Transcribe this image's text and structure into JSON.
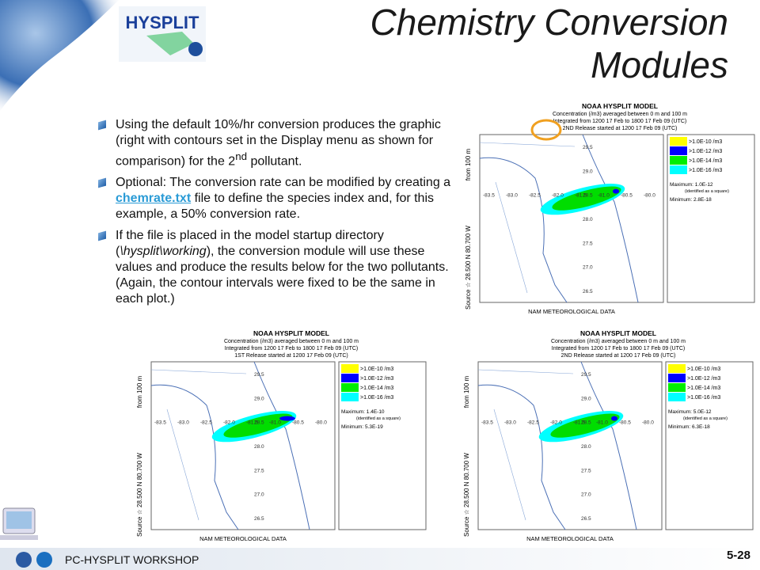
{
  "slide": {
    "title_line1": "Chemistry Conversion",
    "title_line2": "Modules",
    "logo_text": "HYSPLIT",
    "bullets": [
      {
        "parts": [
          "Using the default 10%/hr conversion produces the graphic (right with contours set in the Display menu as shown for comparison) for the 2",
          "nd",
          " pollutant."
        ]
      },
      {
        "parts": [
          "Optional: The conversion rate can be modified by creating a ",
          "chemrate.txt",
          " file to define the species index and, for this example, a 50% conversion rate."
        ]
      },
      {
        "parts": [
          "If the file is placed in the model startup directory (",
          "\\hysplit\\working",
          "), the conversion module will use these values and produce the results below for the two pollutants. (Again, the contour intervals were fixed to be the same in each plot.)"
        ]
      }
    ],
    "footer": "PC-HYSPLIT WORKSHOP",
    "page_number": "5-28"
  },
  "plots": [
    {
      "header": [
        "NOAA HYSPLIT MODEL",
        "Concentration (/m3) averaged between    0 m and   100 m",
        "Integrated from 1200 17 Feb to 1800 17 Feb 09 (UTC)",
        "2ND  Release started at 1200 17 Feb 09 (UTC)"
      ],
      "legend": [
        {
          "label": ">1.0E-10 /m3",
          "color": "#ffff00"
        },
        {
          "label": ">1.0E-12 /m3",
          "color": "#0000ff"
        },
        {
          "label": ">1.0E-14 /m3",
          "color": "#00ee00"
        },
        {
          "label": ">1.0E-16 /m3",
          "color": "#00ffff"
        }
      ],
      "maximum": "Maximum: 1.0E-12",
      "max_note": "(identified as a square)",
      "minimum": "Minimum: 2.8E-18",
      "source": "Source ☆ 28.500 N 80.700 W",
      "height": "from  100 m",
      "met": "NAM METEOROLOGICAL DATA",
      "lat_labels": [
        "29.5",
        "29.0",
        "28.5",
        "28.0",
        "27.5",
        "27.0",
        "26.5"
      ],
      "lon_labels": [
        "-83.5",
        "-83.0",
        "-82.5",
        "-82.0",
        "-81.5",
        "-81.0",
        "-80.5",
        "-80.0"
      ]
    },
    {
      "header": [
        "NOAA HYSPLIT MODEL",
        "Concentration (/m3) averaged between    0 m and   100 m",
        "Integrated from 1200 17 Feb to 1800 17 Feb 09 (UTC)",
        "1ST  Release started at 1200 17 Feb 09 (UTC)"
      ],
      "legend": [
        {
          "label": ">1.0E-10 /m3",
          "color": "#ffff00"
        },
        {
          "label": ">1.0E-12 /m3",
          "color": "#0000ff"
        },
        {
          "label": ">1.0E-14 /m3",
          "color": "#00ee00"
        },
        {
          "label": ">1.0E-16 /m3",
          "color": "#00ffff"
        }
      ],
      "maximum": "Maximum: 1.4E-10",
      "max_note": "(identified as a square)",
      "minimum": "Minimum: 5.3E-19",
      "source": "Source ☆ 28.500 N 80.700 W",
      "height": "from  100 m",
      "met": "NAM METEOROLOGICAL DATA",
      "lat_labels": [
        "29.5",
        "29.0",
        "28.5",
        "28.0",
        "27.5",
        "27.0",
        "26.5"
      ],
      "lon_labels": [
        "-83.5",
        "-83.0",
        "-82.5",
        "-82.0",
        "-81.5",
        "-81.0",
        "-80.5",
        "-80.0"
      ]
    },
    {
      "header": [
        "NOAA HYSPLIT MODEL",
        "Concentration (/m3) averaged between    0 m and   100 m",
        "Integrated from 1200 17 Feb to 1800 17 Feb 09 (UTC)",
        "2ND  Release started at 1200 17 Feb 09 (UTC)"
      ],
      "legend": [
        {
          "label": ">1.0E-10 /m3",
          "color": "#ffff00"
        },
        {
          "label": ">1.0E-12 /m3",
          "color": "#0000ff"
        },
        {
          "label": ">1.0E-14 /m3",
          "color": "#00ee00"
        },
        {
          "label": ">1.0E-16 /m3",
          "color": "#00ffff"
        }
      ],
      "maximum": "Maximum: 5.0E-12",
      "max_note": "(identified as a square)",
      "minimum": "Minimum: 6.3E-18",
      "source": "Source ☆ 28.500 N 80.700 W",
      "height": "from  100 m",
      "met": "NAM METEOROLOGICAL DATA",
      "lat_labels": [
        "29.5",
        "29.0",
        "28.5",
        "28.0",
        "27.5",
        "27.0",
        "26.5"
      ],
      "lon_labels": [
        "-83.5",
        "-83.0",
        "-82.5",
        "-82.0",
        "-81.5",
        "-81.0",
        "-80.5",
        "-80.0"
      ]
    }
  ]
}
